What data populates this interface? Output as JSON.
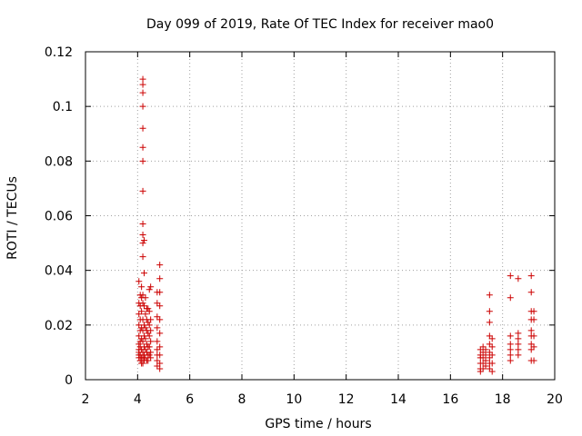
{
  "chart_data": {
    "type": "scatter",
    "title": "Day 099 of 2019, Rate Of TEC Index for receiver mao0",
    "xlabel": "GPS time / hours",
    "ylabel": "ROTI / TECUs",
    "xlim": [
      2,
      20
    ],
    "ylim": [
      0,
      0.12
    ],
    "xticks": [
      "2",
      "4",
      "6",
      "8",
      "10",
      "12",
      "14",
      "16",
      "18",
      "20"
    ],
    "yticks": [
      "0",
      "0.02",
      "0.04",
      "0.06",
      "0.08",
      "0.1",
      "0.12"
    ],
    "grid": true,
    "marker": "+",
    "color": "#cc0000",
    "series": [
      {
        "name": "ROTI",
        "points": [
          [
            4.05,
            0.036
          ],
          [
            4.05,
            0.028
          ],
          [
            4.05,
            0.024
          ],
          [
            4.05,
            0.02
          ],
          [
            4.05,
            0.016
          ],
          [
            4.05,
            0.013
          ],
          [
            4.05,
            0.011
          ],
          [
            4.05,
            0.01
          ],
          [
            4.05,
            0.009
          ],
          [
            4.05,
            0.008
          ],
          [
            4.1,
            0.031
          ],
          [
            4.1,
            0.027
          ],
          [
            4.1,
            0.022
          ],
          [
            4.1,
            0.018
          ],
          [
            4.1,
            0.014
          ],
          [
            4.1,
            0.012
          ],
          [
            4.1,
            0.009
          ],
          [
            4.1,
            0.007
          ],
          [
            4.15,
            0.034
          ],
          [
            4.15,
            0.03
          ],
          [
            4.15,
            0.025
          ],
          [
            4.15,
            0.019
          ],
          [
            4.15,
            0.015
          ],
          [
            4.15,
            0.011
          ],
          [
            4.15,
            0.008
          ],
          [
            4.15,
            0.006
          ],
          [
            4.2,
            0.11
          ],
          [
            4.2,
            0.108
          ],
          [
            4.2,
            0.105
          ],
          [
            4.2,
            0.1
          ],
          [
            4.2,
            0.092
          ],
          [
            4.2,
            0.085
          ],
          [
            4.2,
            0.08
          ],
          [
            4.2,
            0.069
          ],
          [
            4.2,
            0.057
          ],
          [
            4.2,
            0.053
          ],
          [
            4.2,
            0.05
          ],
          [
            4.2,
            0.045
          ],
          [
            4.2,
            0.031
          ],
          [
            4.2,
            0.028
          ],
          [
            4.2,
            0.022
          ],
          [
            4.2,
            0.018
          ],
          [
            4.2,
            0.014
          ],
          [
            4.2,
            0.01
          ],
          [
            4.2,
            0.008
          ],
          [
            4.2,
            0.006
          ],
          [
            4.25,
            0.051
          ],
          [
            4.25,
            0.039
          ],
          [
            4.25,
            0.027
          ],
          [
            4.25,
            0.02
          ],
          [
            4.25,
            0.016
          ],
          [
            4.25,
            0.012
          ],
          [
            4.25,
            0.009
          ],
          [
            4.25,
            0.007
          ],
          [
            4.3,
            0.03
          ],
          [
            4.3,
            0.024
          ],
          [
            4.3,
            0.019
          ],
          [
            4.3,
            0.015
          ],
          [
            4.3,
            0.011
          ],
          [
            4.3,
            0.008
          ],
          [
            4.35,
            0.026
          ],
          [
            4.35,
            0.022
          ],
          [
            4.35,
            0.018
          ],
          [
            4.35,
            0.013
          ],
          [
            4.35,
            0.01
          ],
          [
            4.35,
            0.007
          ],
          [
            4.4,
            0.026
          ],
          [
            4.4,
            0.021
          ],
          [
            4.4,
            0.017
          ],
          [
            4.4,
            0.012
          ],
          [
            4.4,
            0.009
          ],
          [
            4.4,
            0.007
          ],
          [
            4.45,
            0.033
          ],
          [
            4.45,
            0.025
          ],
          [
            4.45,
            0.02
          ],
          [
            4.45,
            0.016
          ],
          [
            4.45,
            0.012
          ],
          [
            4.45,
            0.009
          ],
          [
            4.5,
            0.034
          ],
          [
            4.5,
            0.022
          ],
          [
            4.5,
            0.018
          ],
          [
            4.5,
            0.014
          ],
          [
            4.5,
            0.01
          ],
          [
            4.5,
            0.008
          ],
          [
            4.75,
            0.032
          ],
          [
            4.75,
            0.028
          ],
          [
            4.75,
            0.023
          ],
          [
            4.75,
            0.019
          ],
          [
            4.75,
            0.014
          ],
          [
            4.75,
            0.011
          ],
          [
            4.75,
            0.009
          ],
          [
            4.75,
            0.007
          ],
          [
            4.75,
            0.005
          ],
          [
            4.85,
            0.042
          ],
          [
            4.85,
            0.037
          ],
          [
            4.85,
            0.032
          ],
          [
            4.85,
            0.027
          ],
          [
            4.85,
            0.022
          ],
          [
            4.85,
            0.017
          ],
          [
            4.85,
            0.012
          ],
          [
            4.85,
            0.009
          ],
          [
            4.85,
            0.006
          ],
          [
            4.85,
            0.004
          ],
          [
            17.15,
            0.011
          ],
          [
            17.15,
            0.009
          ],
          [
            17.15,
            0.008
          ],
          [
            17.15,
            0.006
          ],
          [
            17.15,
            0.004
          ],
          [
            17.15,
            0.003
          ],
          [
            17.25,
            0.012
          ],
          [
            17.25,
            0.01
          ],
          [
            17.25,
            0.008
          ],
          [
            17.25,
            0.006
          ],
          [
            17.25,
            0.004
          ],
          [
            17.35,
            0.011
          ],
          [
            17.35,
            0.009
          ],
          [
            17.35,
            0.007
          ],
          [
            17.35,
            0.005
          ],
          [
            17.5,
            0.031
          ],
          [
            17.5,
            0.025
          ],
          [
            17.5,
            0.021
          ],
          [
            17.5,
            0.016
          ],
          [
            17.5,
            0.013
          ],
          [
            17.5,
            0.01
          ],
          [
            17.5,
            0.008
          ],
          [
            17.5,
            0.006
          ],
          [
            17.5,
            0.004
          ],
          [
            17.6,
            0.015
          ],
          [
            17.6,
            0.012
          ],
          [
            17.6,
            0.009
          ],
          [
            17.6,
            0.006
          ],
          [
            17.6,
            0.003
          ],
          [
            18.3,
            0.038
          ],
          [
            18.3,
            0.03
          ],
          [
            18.3,
            0.016
          ],
          [
            18.3,
            0.013
          ],
          [
            18.3,
            0.011
          ],
          [
            18.3,
            0.009
          ],
          [
            18.3,
            0.007
          ],
          [
            18.6,
            0.037
          ],
          [
            18.6,
            0.017
          ],
          [
            18.6,
            0.015
          ],
          [
            18.6,
            0.013
          ],
          [
            18.6,
            0.011
          ],
          [
            18.6,
            0.009
          ],
          [
            19.1,
            0.038
          ],
          [
            19.1,
            0.032
          ],
          [
            19.1,
            0.025
          ],
          [
            19.1,
            0.022
          ],
          [
            19.1,
            0.018
          ],
          [
            19.1,
            0.016
          ],
          [
            19.1,
            0.013
          ],
          [
            19.1,
            0.011
          ],
          [
            19.1,
            0.007
          ],
          [
            19.2,
            0.025
          ],
          [
            19.2,
            0.022
          ],
          [
            19.2,
            0.016
          ],
          [
            19.2,
            0.012
          ],
          [
            19.2,
            0.007
          ]
        ]
      }
    ]
  }
}
